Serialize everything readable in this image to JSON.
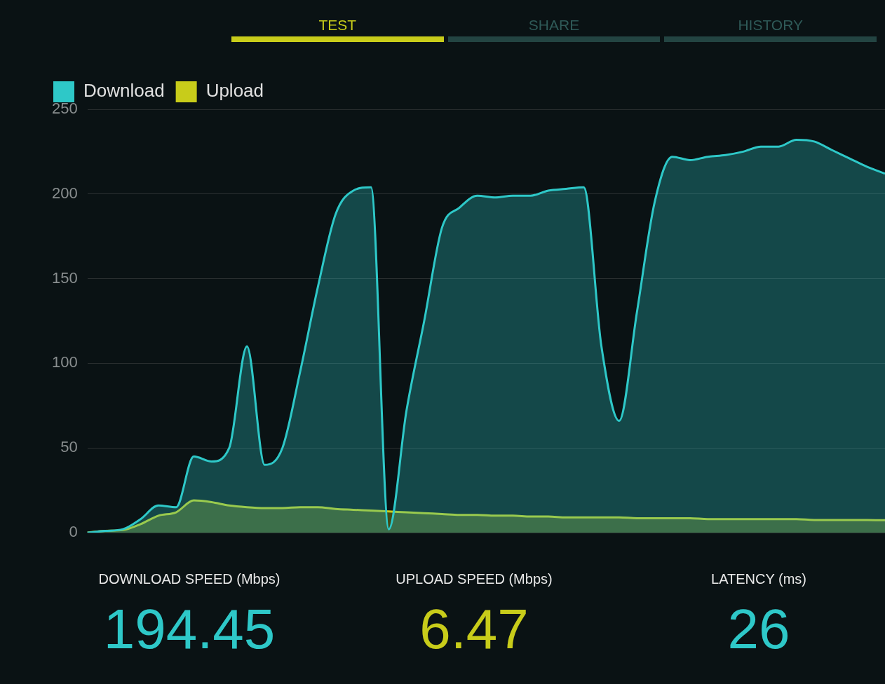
{
  "chart_data": {
    "type": "area",
    "categories": [
      null,
      null,
      null,
      null,
      null,
      null,
      null,
      null,
      null,
      null,
      null,
      null,
      null,
      null,
      null,
      null,
      null,
      null,
      null,
      null,
      null,
      null,
      null,
      null,
      null,
      null,
      null,
      null,
      null,
      null,
      null,
      null,
      null,
      null,
      null,
      null,
      null,
      null,
      null,
      null,
      null,
      null,
      null,
      null,
      null,
      null
    ],
    "series": [
      {
        "name": "Download",
        "color": "#2ec8c8",
        "values": [
          0,
          1,
          2,
          8,
          16,
          15,
          45,
          42,
          50,
          110,
          40,
          50,
          95,
          145,
          188,
          202,
          204,
          2,
          72,
          125,
          180,
          192,
          199,
          198,
          199,
          199,
          202,
          203,
          204,
          110,
          66,
          130,
          195,
          222,
          220,
          222,
          223,
          225,
          228,
          228,
          232,
          231,
          226,
          221,
          216,
          212
        ]
      },
      {
        "name": "Upload",
        "color": "#c8cc1a",
        "values": [
          0,
          1,
          1.5,
          5,
          10,
          12,
          19,
          18,
          16,
          15,
          14.5,
          14.5,
          15,
          15,
          14,
          13.5,
          13,
          12.5,
          12,
          11.5,
          11,
          10.5,
          10.5,
          10,
          10,
          9.5,
          9.5,
          9,
          9,
          9,
          9,
          8.5,
          8.5,
          8.5,
          8.5,
          8,
          8,
          8,
          8,
          8,
          8,
          7.5,
          7.5,
          7.5,
          7.5,
          7.3
        ]
      }
    ],
    "ylim": [
      0,
      250
    ],
    "yticks": [
      0,
      50,
      100,
      150,
      200,
      250
    ],
    "grid": "y",
    "legend": "top left",
    "marker": "none",
    "tick_labels": "y",
    "annotations": [
      "TEST",
      "SHARE",
      "HISTORY",
      "DOWNLOAD SPEED (Mbps)",
      "194.45",
      "UPLOAD SPEED (Mbps)",
      "6.47",
      "LATENCY (ms)",
      "26"
    ]
  }
}
